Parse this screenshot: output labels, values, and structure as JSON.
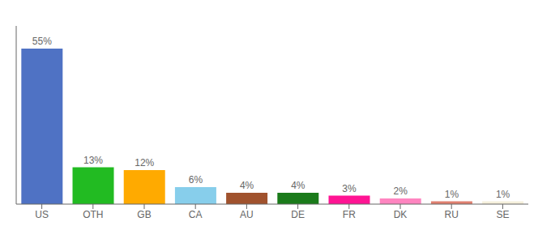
{
  "chart_data": {
    "type": "bar",
    "categories": [
      "US",
      "OTH",
      "GB",
      "CA",
      "AU",
      "DE",
      "FR",
      "DK",
      "RU",
      "SE"
    ],
    "values": [
      55,
      13,
      12,
      6,
      4,
      4,
      3,
      2,
      1,
      1
    ],
    "value_labels": [
      "55%",
      "13%",
      "12%",
      "6%",
      "4%",
      "4%",
      "3%",
      "2%",
      "1%",
      "1%"
    ],
    "data_labels": true,
    "colors": [
      "#4f72c4",
      "#22bb22",
      "#ffaa00",
      "#87ceeb",
      "#a0522d",
      "#1a7a1a",
      "#ff1493",
      "#ff85c0",
      "#e08070",
      "#f5f0dc"
    ],
    "ylim": [
      0,
      63
    ],
    "grid": false,
    "tick_labels": "x"
  }
}
